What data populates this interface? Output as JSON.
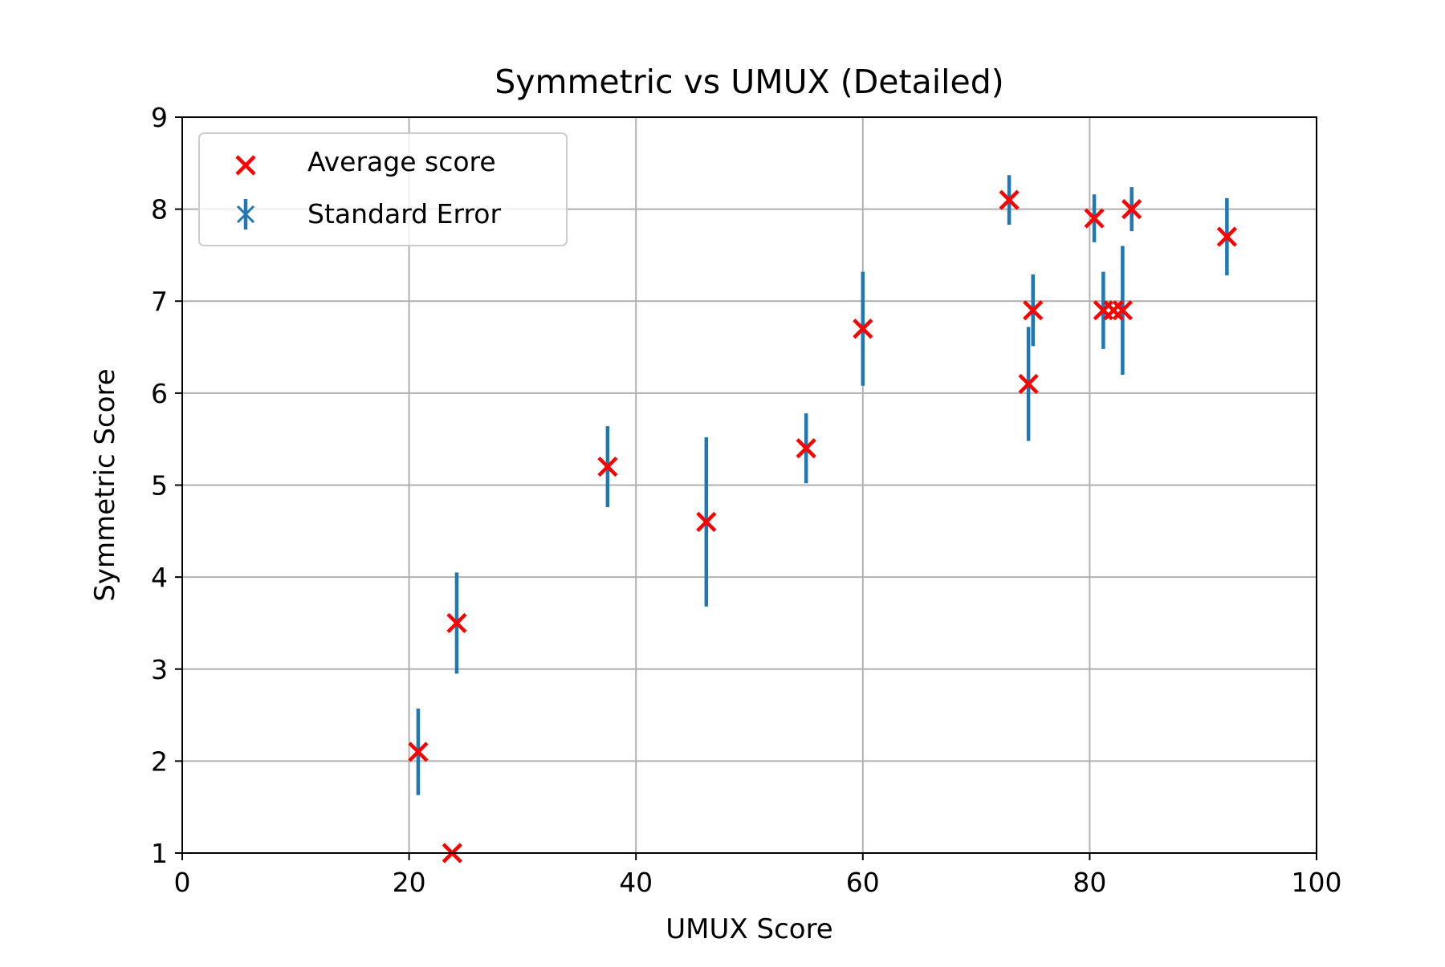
{
  "colors": {
    "marker": "#ff0000",
    "errorbar": "#1f77b4",
    "grid": "#b0b0b0",
    "axes": "#000000",
    "background": "#ffffff"
  },
  "chart_data": {
    "type": "scatter",
    "title": "Symmetric vs UMUX (Detailed)",
    "xlabel": "UMUX Score",
    "ylabel": "Symmetric Score",
    "xlim": [
      0,
      100
    ],
    "ylim": [
      1,
      9
    ],
    "xticks": [
      "0",
      "20",
      "40",
      "60",
      "80",
      "100"
    ],
    "yticks": [
      "1",
      "2",
      "3",
      "4",
      "5",
      "6",
      "7",
      "8",
      "9"
    ],
    "grid": true,
    "legend": {
      "placement": "top-left",
      "entries": [
        {
          "label": "Average score",
          "marker": "x",
          "color_key": "marker"
        },
        {
          "label": "Standard Error",
          "marker": "errorbar",
          "color_key": "errorbar"
        }
      ]
    },
    "series": [
      {
        "name": "Average score",
        "marker": "x",
        "points": [
          {
            "x": 20.8,
            "y": 2.1,
            "se": 0.47
          },
          {
            "x": 23.8,
            "y": 1.0,
            "se": 0.0
          },
          {
            "x": 24.2,
            "y": 3.5,
            "se": 0.55
          },
          {
            "x": 37.5,
            "y": 5.2,
            "se": 0.44
          },
          {
            "x": 46.2,
            "y": 4.6,
            "se": 0.92
          },
          {
            "x": 55.0,
            "y": 5.4,
            "se": 0.38
          },
          {
            "x": 60.0,
            "y": 6.7,
            "se": 0.62
          },
          {
            "x": 72.9,
            "y": 8.1,
            "se": 0.27
          },
          {
            "x": 74.6,
            "y": 6.1,
            "se": 0.62
          },
          {
            "x": 75.0,
            "y": 6.9,
            "se": 0.39
          },
          {
            "x": 80.4,
            "y": 7.9,
            "se": 0.26
          },
          {
            "x": 81.2,
            "y": 6.9,
            "se": 0.42
          },
          {
            "x": 82.1,
            "y": 6.9,
            "se": 0.0
          },
          {
            "x": 82.9,
            "y": 6.9,
            "se": 0.7
          },
          {
            "x": 83.7,
            "y": 8.0,
            "se": 0.24
          },
          {
            "x": 92.1,
            "y": 7.7,
            "se": 0.42
          }
        ]
      }
    ]
  }
}
